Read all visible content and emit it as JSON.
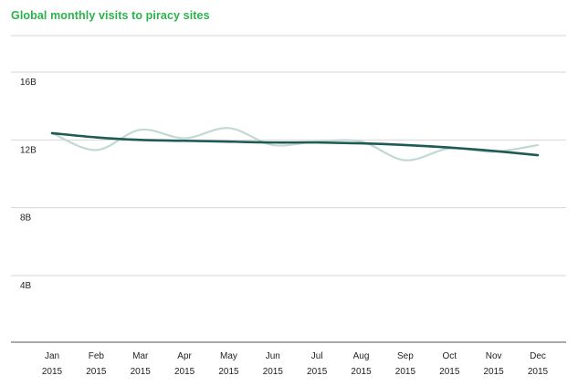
{
  "colors": {
    "title": "#2bb24c",
    "gridline": "#d6d6d6",
    "axis": "#555555",
    "trend": "#1f5a55",
    "raw": "#c2d9d3"
  },
  "chart_data": {
    "type": "line",
    "title": "Global monthly visits to piracy sites",
    "xlabel": "",
    "ylabel": "",
    "ylim": [
      0,
      18
    ],
    "yticks": [
      {
        "value": 4,
        "label": "4B"
      },
      {
        "value": 8,
        "label": "8B"
      },
      {
        "value": 12,
        "label": "12B"
      },
      {
        "value": 16,
        "label": "16B"
      }
    ],
    "y_unit": "billions",
    "categories": [
      {
        "month": "Jan",
        "year": "2015"
      },
      {
        "month": "Feb",
        "year": "2015"
      },
      {
        "month": "Mar",
        "year": "2015"
      },
      {
        "month": "Apr",
        "year": "2015"
      },
      {
        "month": "May",
        "year": "2015"
      },
      {
        "month": "Jun",
        "year": "2015"
      },
      {
        "month": "Jul",
        "year": "2015"
      },
      {
        "month": "Aug",
        "year": "2015"
      },
      {
        "month": "Sep",
        "year": "2015"
      },
      {
        "month": "Oct",
        "year": "2015"
      },
      {
        "month": "Nov",
        "year": "2015"
      },
      {
        "month": "Dec",
        "year": "2015"
      }
    ],
    "grid": true,
    "legend": "none",
    "series": [
      {
        "role": "raw",
        "values": [
          12.4,
          11.4,
          12.6,
          12.1,
          12.7,
          11.7,
          11.9,
          11.9,
          10.8,
          11.5,
          11.3,
          11.7
        ]
      },
      {
        "role": "trend",
        "values": [
          12.4,
          12.15,
          12.0,
          11.95,
          11.9,
          11.85,
          11.85,
          11.8,
          11.7,
          11.55,
          11.35,
          11.1
        ]
      }
    ]
  }
}
